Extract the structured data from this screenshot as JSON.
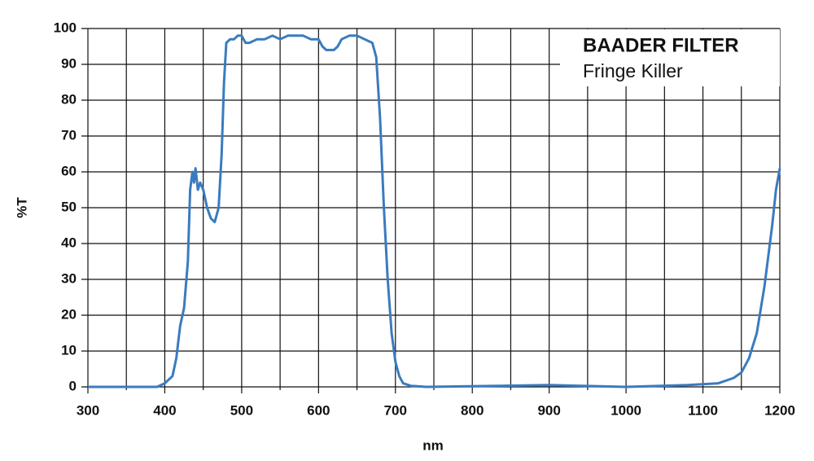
{
  "chart_data": {
    "type": "line",
    "title": "BAADER FILTER",
    "subtitle": "Fringe Killer",
    "x_label": "nm",
    "y_label": "%T",
    "xlim": [
      300,
      1200
    ],
    "ylim": [
      0,
      100
    ],
    "xticks": [
      300,
      400,
      500,
      600,
      700,
      800,
      900,
      1000,
      1100,
      1200
    ],
    "xminor_ticks": [
      350,
      450,
      550,
      650,
      750,
      850,
      950,
      1050,
      1150
    ],
    "yticks": [
      0,
      10,
      20,
      30,
      40,
      50,
      60,
      70,
      80,
      90,
      100
    ],
    "grid": true,
    "series": [
      {
        "color": "#3a7bbf",
        "x": [
          300,
          390,
          400,
          410,
          415,
          420,
          425,
          430,
          433,
          436,
          438,
          440,
          443,
          446,
          450,
          455,
          460,
          465,
          470,
          474,
          477,
          480,
          485,
          490,
          495,
          500,
          505,
          510,
          520,
          530,
          540,
          550,
          560,
          570,
          580,
          590,
          600,
          605,
          610,
          620,
          625,
          630,
          640,
          650,
          660,
          670,
          675,
          680,
          685,
          690,
          695,
          700,
          705,
          710,
          720,
          740,
          900,
          1000,
          1080,
          1120,
          1140,
          1150,
          1160,
          1170,
          1180,
          1190,
          1195,
          1200
        ],
        "values": [
          0,
          0,
          1,
          3,
          8,
          17,
          22,
          35,
          55,
          60,
          57,
          61,
          55,
          57,
          55,
          50,
          47,
          46,
          50,
          65,
          85,
          96,
          97,
          97,
          98,
          98,
          96,
          96,
          97,
          97,
          98,
          97,
          98,
          98,
          98,
          97,
          97,
          95,
          94,
          94,
          95,
          97,
          98,
          98,
          97,
          96,
          92,
          75,
          50,
          30,
          15,
          7,
          3,
          1,
          0.3,
          0,
          0.5,
          0,
          0.5,
          1,
          2.5,
          4,
          8,
          15,
          28,
          45,
          55,
          61
        ]
      }
    ]
  }
}
